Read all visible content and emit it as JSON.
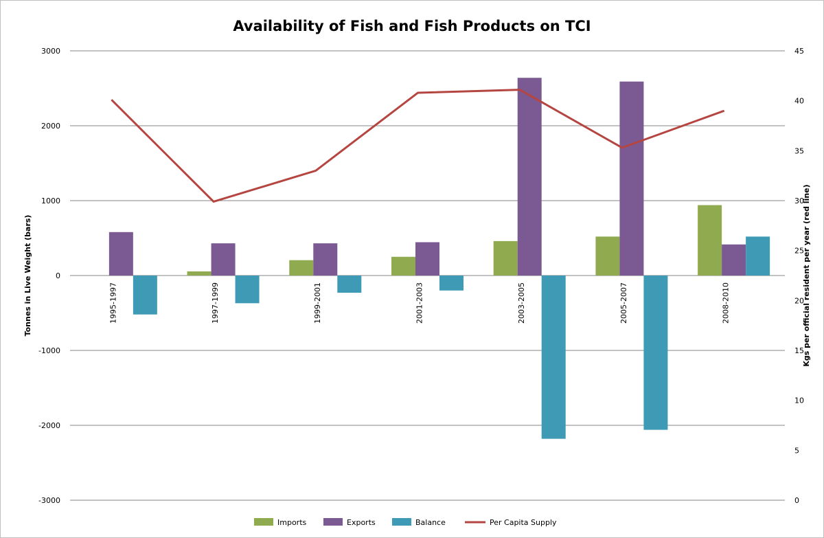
{
  "chart_data": {
    "type": "bar",
    "title": "Availability of Fish and Fish Products on TCI",
    "ylabel": "Tonnes in Live Weight (bars)",
    "y2label": "Kgs per official resident per year (red line)",
    "ylim": [
      -3000,
      3000
    ],
    "y_ticks": [
      "3000",
      "2000",
      "1000",
      "0",
      "-1000",
      "-2000",
      "-3000"
    ],
    "y2lim": [
      0,
      45
    ],
    "y2_ticks": [
      "45",
      "40",
      "35",
      "30",
      "25",
      "20",
      "15",
      "10",
      "5",
      "0"
    ],
    "grid": true,
    "legend_position": "bottom",
    "categories": [
      "1995-1997",
      "1997-1999",
      "1999-2001",
      "2001-2003",
      "2003-2005",
      "2005-2007",
      "2008-2010"
    ],
    "series": [
      {
        "name": "Imports",
        "type": "bar",
        "axis": "left",
        "color": "#8faa4f",
        "values": [
          0,
          55,
          205,
          250,
          460,
          520,
          940
        ]
      },
      {
        "name": "Exports",
        "type": "bar",
        "axis": "left",
        "color": "#7b5a94",
        "values": [
          580,
          430,
          430,
          445,
          2640,
          2590,
          415
        ]
      },
      {
        "name": "Balance",
        "type": "bar",
        "axis": "left",
        "color": "#3e9ab5",
        "values": [
          -520,
          -370,
          -230,
          -200,
          -2180,
          -2060,
          520
        ]
      },
      {
        "name": "Per Capita Supply",
        "type": "line",
        "axis": "right",
        "color": "#b54540",
        "values": [
          40.1,
          29.9,
          33.0,
          40.8,
          41.1,
          35.3,
          39.0
        ]
      }
    ]
  }
}
